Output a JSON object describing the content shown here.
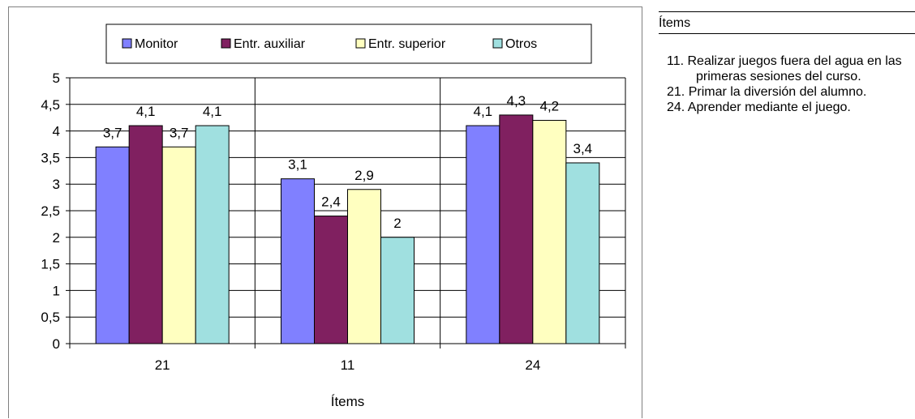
{
  "chart_data": {
    "type": "bar",
    "categories": [
      "21",
      "11",
      "24"
    ],
    "series": [
      {
        "name": "Monitor",
        "values": [
          3.7,
          3.1,
          4.1
        ],
        "color": "#8080FF"
      },
      {
        "name": "Entr. auxiliar",
        "values": [
          4.1,
          2.4,
          4.3
        ],
        "color": "#802060"
      },
      {
        "name": "Entr. superior",
        "values": [
          3.7,
          2.9,
          4.2
        ],
        "color": "#FFFFC0"
      },
      {
        "name": "Otros",
        "values": [
          4.1,
          2.0,
          3.4
        ],
        "color": "#A0E0E0"
      }
    ],
    "data_labels": [
      [
        "3,7",
        "3,1",
        "4,1"
      ],
      [
        "4,1",
        "2,4",
        "4,3"
      ],
      [
        "3,7",
        "2,9",
        "4,2"
      ],
      [
        "4,1",
        "2",
        "3,4"
      ]
    ],
    "ylim": [
      0,
      5
    ],
    "yticks": [
      "0",
      "0,5",
      "1",
      "1,5",
      "2",
      "2,5",
      "3",
      "3,5",
      "4",
      "4,5",
      "5"
    ],
    "xlabel": "Ítems",
    "ylabel": "",
    "title": "",
    "legend_position": "top",
    "grid": true
  },
  "side": {
    "title": "Ítems",
    "items": [
      "11. Realizar juegos fuera del agua en las primeras sesiones del curso.",
      "21. Primar la diversión del alumno.",
      "24. Aprender mediante el juego."
    ]
  }
}
